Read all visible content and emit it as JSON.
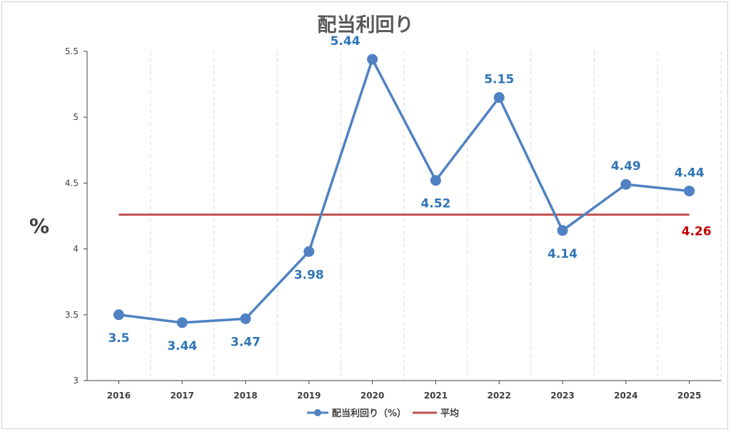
{
  "chart_data": {
    "type": "line",
    "title": "配当利回り",
    "ylabel": "%",
    "xlabel": "",
    "categories": [
      "2016",
      "2017",
      "2018",
      "2019",
      "2020",
      "2021",
      "2022",
      "2023",
      "2024",
      "2025"
    ],
    "ylim": [
      3,
      5.5
    ],
    "yticks": [
      "3",
      "3.5",
      "4",
      "4.5",
      "5",
      "5.5"
    ],
    "grid": "vertical-dashed",
    "legend_position": "bottom",
    "series": [
      {
        "name": "配当利回り（%）",
        "values": [
          3.5,
          3.44,
          3.47,
          3.98,
          5.44,
          4.52,
          5.15,
          4.14,
          4.49,
          4.44
        ],
        "labels": [
          "3.5",
          "3.44",
          "3.47",
          "3.98",
          "5.44",
          "4.52",
          "5.15",
          "4.14",
          "4.49",
          "4.44"
        ],
        "color": "#5081c2"
      },
      {
        "name": "平均",
        "values": [
          4.26,
          4.26,
          4.26,
          4.26,
          4.26,
          4.26,
          4.26,
          4.26,
          4.26,
          4.26
        ],
        "label": "4.26",
        "color": "#c0504d"
      }
    ]
  }
}
